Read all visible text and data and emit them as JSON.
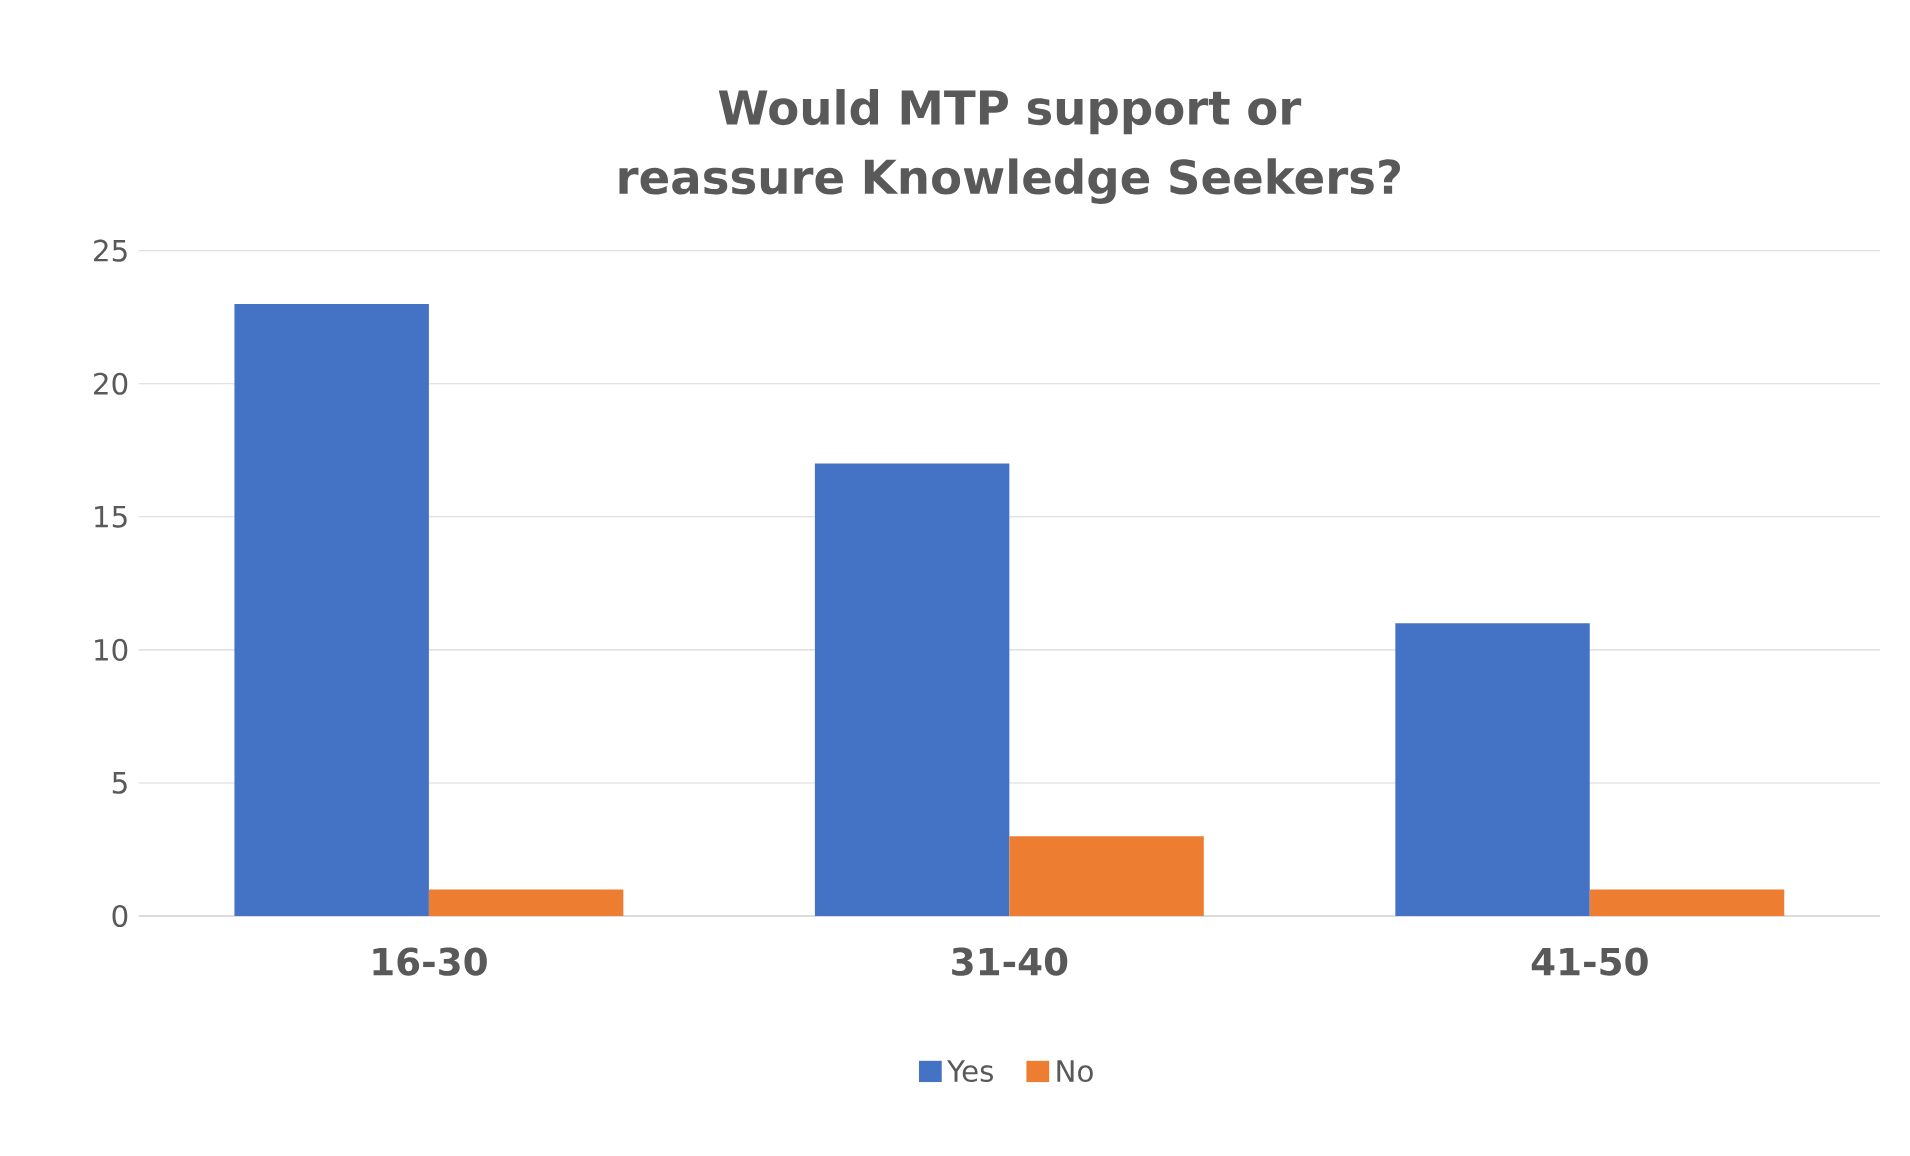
{
  "chart_data": {
    "type": "bar",
    "title": "Would MTP support or reassure Knowledge Seekers?",
    "categories": [
      "16-30",
      "31-40",
      "41-50"
    ],
    "series": [
      {
        "name": "Yes",
        "color": "#4472c4",
        "values": [
          23,
          17,
          11
        ]
      },
      {
        "name": "No",
        "color": "#ed7d31",
        "values": [
          1,
          3,
          1
        ]
      }
    ],
    "ylim": [
      0,
      25
    ],
    "yticks": [
      0,
      5,
      10,
      15,
      20,
      25
    ],
    "grid": "y",
    "legend": "bottom"
  }
}
